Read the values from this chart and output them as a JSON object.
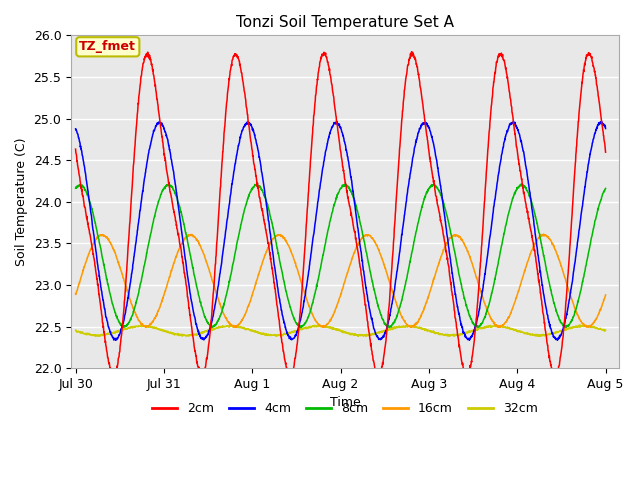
{
  "title": "Tonzi Soil Temperature Set A",
  "xlabel": "Time",
  "ylabel": "Soil Temperature (C)",
  "ylim": [
    22.0,
    26.0
  ],
  "yticks": [
    22.0,
    22.5,
    23.0,
    23.5,
    24.0,
    24.5,
    25.0,
    25.5,
    26.0
  ],
  "xtick_labels": [
    "Jul 30",
    "Jul 31",
    "Aug 1",
    "Aug 2",
    "Aug 3",
    "Aug 4",
    "Aug 5"
  ],
  "annotation_text": "TZ_fmet",
  "annotation_color": "#cc0000",
  "annotation_bg": "#ffffcc",
  "annotation_border": "#bbbb00",
  "series_colors": [
    "#ff0000",
    "#0000ff",
    "#00bb00",
    "#ff9900",
    "#cccc00"
  ],
  "series_labels": [
    "2cm",
    "4cm",
    "8cm",
    "16cm",
    "32cm"
  ],
  "bg_color": "#e8e8e8",
  "grid_color": "#ffffff",
  "n_points": 2000,
  "time_days": 6.0,
  "params": {
    "2cm": {
      "mean": 23.85,
      "amp": 1.75,
      "phase_days": 0.62,
      "noise": 0.012,
      "sharp": 0.25
    },
    "4cm": {
      "mean": 23.65,
      "amp": 1.3,
      "phase_days": 0.7,
      "noise": 0.008,
      "sharp": 0.0
    },
    "8cm": {
      "mean": 23.35,
      "amp": 0.85,
      "phase_days": 0.8,
      "noise": 0.006,
      "sharp": 0.0
    },
    "16cm": {
      "mean": 23.05,
      "amp": 0.55,
      "phase_days": 1.05,
      "noise": 0.005,
      "sharp": 0.0
    },
    "32cm": {
      "mean": 22.45,
      "amp": 0.055,
      "phase_days": 1.5,
      "noise": 0.005,
      "sharp": 0.0
    }
  }
}
